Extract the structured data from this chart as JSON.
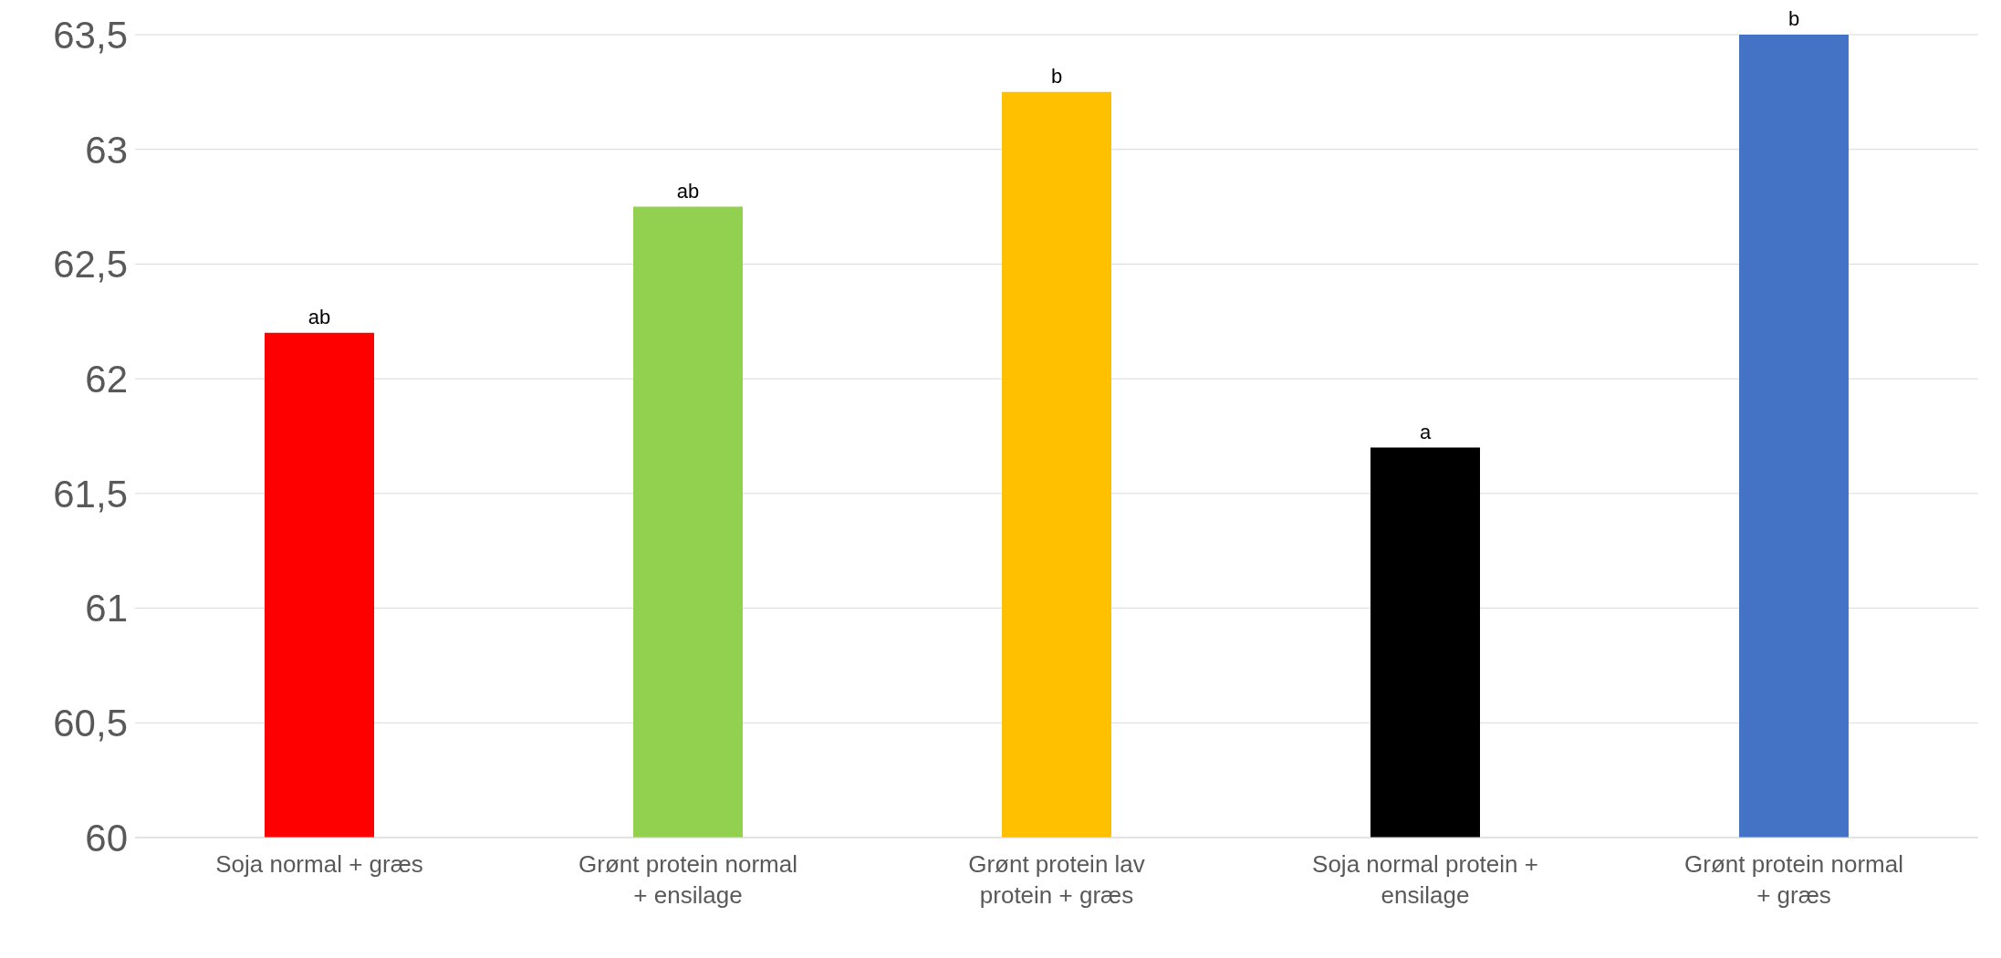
{
  "chart_data": {
    "type": "bar",
    "categories": [
      "Soja normal + græs",
      "Grønt protein normal + ensilage",
      "Grønt protein lav protein + græs",
      "Soja normal protein + ensilage",
      "Grønt protein normal + græs"
    ],
    "values": [
      62.2,
      62.75,
      63.25,
      61.7,
      63.5
    ],
    "colors": [
      "#ff0000",
      "#92d050",
      "#ffc000",
      "#000000",
      "#4472c4"
    ],
    "ylim": [
      60,
      63.5
    ],
    "yticks": [
      60,
      {
        "value": 60.5,
        "label": "60,5"
      },
      61,
      {
        "value": 61.5,
        "label": "61,5"
      },
      62,
      {
        "value": 62.5,
        "label": "62,5"
      },
      63,
      {
        "value": 63.5,
        "label": "63,5"
      }
    ],
    "grid": "y",
    "annotations": [
      {
        "text": "ab",
        "x": "Soja normal + græs",
        "y": 62.2
      },
      {
        "text": "ab",
        "x": "Grønt protein normal + ensilage",
        "y": 62.75
      },
      {
        "text": "b",
        "x": "Grønt protein lav protein + græs",
        "y": 63.25
      },
      {
        "text": "a",
        "x": "Soja normal protein + ensilage",
        "y": 61.7
      },
      {
        "text": "b",
        "x": "Grønt protein normal + græs",
        "y": 63.5
      }
    ]
  }
}
